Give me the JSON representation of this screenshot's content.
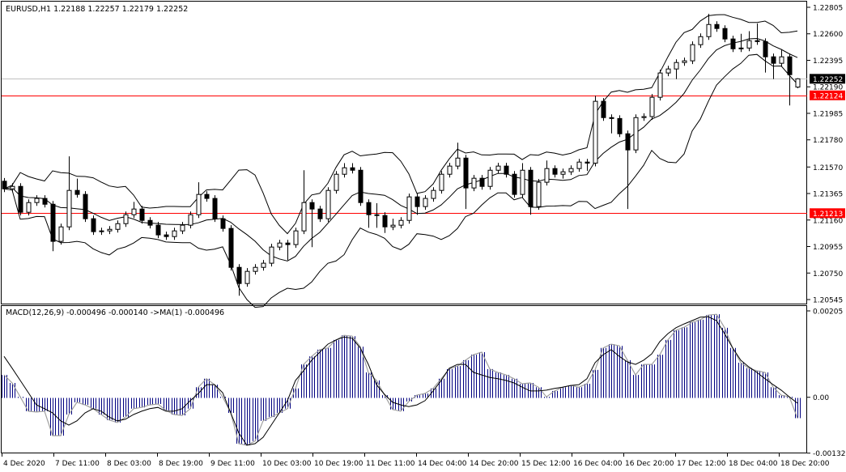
{
  "header": {
    "symbol_info": "EURUSD,H1  1.22188 1.22257 1.22179 1.22252"
  },
  "macd_legend": "MACD(12,26,9) -0.000496 -0.000140  ->MA(1) -0.000496",
  "colors": {
    "bull_body": "#ffffff",
    "bear_body": "#000000",
    "candle_outline": "#000000",
    "bands": "#000000",
    "hline": "#ff0000",
    "bid_line": "#c0c0c0",
    "histogram": "#000080",
    "histogram_outline": "#a0a0a0",
    "signal": "#000000"
  },
  "chart_data": [
    {
      "type": "candlestick",
      "symbol": "EURUSD",
      "timeframe": "H1",
      "ylim": [
        1.20545,
        1.22805
      ],
      "y_ticks": [
        "1.22805",
        "1.22600",
        "1.22395",
        "1.22190",
        "1.21985",
        "1.21780",
        "1.21570",
        "1.21365",
        "1.21160",
        "1.20955",
        "1.20750",
        "1.20545"
      ],
      "x_ticks": [
        "4 Dec 2020",
        "7 Dec 11:00",
        "8 Dec 03:00",
        "8 Dec 19:00",
        "9 Dec 11:00",
        "10 Dec 03:00",
        "10 Dec 19:00",
        "11 Dec 11:00",
        "14 Dec 04:00",
        "14 Dec 20:00",
        "15 Dec 12:00",
        "16 Dec 04:00",
        "16 Dec 20:00",
        "17 Dec 12:00",
        "18 Dec 04:00",
        "18 Dec 20:00"
      ],
      "indicator": "Bollinger Bands",
      "price_labels": [
        {
          "value": "1.22252",
          "kind": "bid",
          "color": "#000000"
        },
        {
          "value": "1.22124",
          "kind": "horizontal-line",
          "color": "#ff0000"
        },
        {
          "value": "1.21213",
          "kind": "horizontal-line",
          "color": "#ff0000"
        }
      ],
      "close": [
        1.21401,
        1.2142,
        1.2122,
        1.21295,
        1.21327,
        1.21282,
        1.20995,
        1.21107,
        1.21389,
        1.21358,
        1.2117,
        1.2107,
        1.21076,
        1.21088,
        1.21132,
        1.21201,
        1.21245,
        1.21157,
        1.2112,
        1.21045,
        1.21032,
        1.21076,
        1.2112,
        1.21201,
        1.21358,
        1.21327,
        1.2117,
        1.21095,
        1.20794,
        1.20669,
        1.20763,
        1.20794,
        1.20826,
        1.20951,
        1.20982,
        1.2097,
        1.21076,
        1.21295,
        1.21245,
        1.2117,
        1.21389,
        1.21514,
        1.21564,
        1.21545,
        1.21295,
        1.21201,
        1.21195,
        1.21107,
        1.2112,
        1.21157,
        1.21339,
        1.21264,
        1.21327,
        1.21389,
        1.21514,
        1.21577,
        1.21639,
        1.21408,
        1.21483,
        1.2142,
        1.21545,
        1.21577,
        1.21514,
        1.21358,
        1.21545,
        1.21264,
        1.21452,
        1.21558,
        1.21514,
        1.21533,
        1.21558,
        1.21608,
        1.216,
        1.22078,
        1.21952,
        1.21945,
        1.21827,
        1.21702,
        1.21952,
        1.2196,
        1.22109,
        1.22297,
        1.22328,
        1.22378,
        1.22391,
        1.22516,
        1.22578,
        1.22672,
        1.22641,
        1.2256,
        1.22484,
        1.2249,
        1.22547,
        1.2254,
        1.22422,
        1.22372,
        1.22422,
        1.22284,
        1.22252
      ],
      "open": [
        1.2146,
        1.21401,
        1.2142,
        1.2122,
        1.21295,
        1.21327,
        1.21282,
        1.20995,
        1.21107,
        1.21389,
        1.21358,
        1.2117,
        1.2107,
        1.21076,
        1.21088,
        1.21132,
        1.21201,
        1.21245,
        1.21157,
        1.2112,
        1.21045,
        1.21032,
        1.21076,
        1.2112,
        1.21201,
        1.21358,
        1.21327,
        1.2117,
        1.21095,
        1.20794,
        1.20669,
        1.20763,
        1.20794,
        1.20826,
        1.20951,
        1.20982,
        1.2097,
        1.21076,
        1.21295,
        1.21245,
        1.2117,
        1.21389,
        1.21514,
        1.21564,
        1.21545,
        1.21295,
        1.21201,
        1.21195,
        1.21107,
        1.2112,
        1.21157,
        1.21339,
        1.21264,
        1.21327,
        1.21389,
        1.21514,
        1.21577,
        1.21639,
        1.21408,
        1.21483,
        1.2142,
        1.21545,
        1.21577,
        1.21514,
        1.21358,
        1.21545,
        1.21264,
        1.21452,
        1.21558,
        1.21514,
        1.21533,
        1.21558,
        1.21608,
        1.216,
        1.22078,
        1.21952,
        1.21945,
        1.21827,
        1.21702,
        1.21952,
        1.2196,
        1.22109,
        1.22297,
        1.22328,
        1.22378,
        1.22391,
        1.22516,
        1.22578,
        1.22672,
        1.22641,
        1.2256,
        1.22484,
        1.2249,
        1.22547,
        1.2254,
        1.22422,
        1.22372,
        1.22422,
        1.22188
      ],
      "high": [
        1.21485,
        1.21445,
        1.21445,
        1.2132,
        1.21352,
        1.21352,
        1.21307,
        1.21132,
        1.21652,
        1.2148,
        1.21383,
        1.21195,
        1.21101,
        1.21113,
        1.21157,
        1.21226,
        1.213,
        1.2127,
        1.21182,
        1.21145,
        1.2107,
        1.21101,
        1.21145,
        1.21226,
        1.21452,
        1.21383,
        1.21352,
        1.21195,
        1.2112,
        1.20819,
        1.20788,
        1.20819,
        1.20851,
        1.20976,
        1.21007,
        1.21007,
        1.21101,
        1.21545,
        1.2132,
        1.2127,
        1.21414,
        1.21539,
        1.216,
        1.216,
        1.2157,
        1.2132,
        1.2129,
        1.2122,
        1.2117,
        1.21182,
        1.21364,
        1.21364,
        1.21352,
        1.21414,
        1.21539,
        1.21602,
        1.21758,
        1.21664,
        1.21508,
        1.21508,
        1.2157,
        1.21602,
        1.21602,
        1.21539,
        1.216,
        1.2157,
        1.21477,
        1.2162,
        1.21583,
        1.21558,
        1.21583,
        1.21633,
        1.21633,
        1.22121,
        1.22103,
        1.21977,
        1.2197,
        1.21852,
        1.21977,
        1.21985,
        1.22134,
        1.22322,
        1.22353,
        1.22403,
        1.22416,
        1.22541,
        1.22603,
        1.22754,
        1.22697,
        1.22666,
        1.22585,
        1.226,
        1.2262,
        1.2268,
        1.22565,
        1.22447,
        1.2248,
        1.22447,
        1.22257
      ],
      "low": [
        1.21376,
        1.21376,
        1.21195,
        1.21195,
        1.2127,
        1.21257,
        1.20919,
        1.2097,
        1.21082,
        1.21333,
        1.21145,
        1.21045,
        1.21045,
        1.21051,
        1.21063,
        1.21107,
        1.21176,
        1.21132,
        1.21095,
        1.2102,
        1.21007,
        1.21007,
        1.21051,
        1.21095,
        1.21176,
        1.21302,
        1.21145,
        1.2107,
        1.20769,
        1.20575,
        1.20644,
        1.20738,
        1.20769,
        1.20801,
        1.20926,
        1.2085,
        1.20945,
        1.21051,
        1.2095,
        1.21145,
        1.21145,
        1.21364,
        1.21489,
        1.2152,
        1.2127,
        1.211,
        1.211,
        1.2106,
        1.21082,
        1.21095,
        1.21132,
        1.212,
        1.21239,
        1.21302,
        1.21364,
        1.21489,
        1.21552,
        1.21245,
        1.21383,
        1.21395,
        1.21395,
        1.2152,
        1.21489,
        1.21333,
        1.21333,
        1.21201,
        1.21239,
        1.21427,
        1.21489,
        1.2148,
        1.21508,
        1.21533,
        1.2154,
        1.21575,
        1.21927,
        1.2183,
        1.21802,
        1.21245,
        1.21677,
        1.21927,
        1.21935,
        1.22084,
        1.22272,
        1.2225,
        1.22353,
        1.22366,
        1.22491,
        1.22553,
        1.22616,
        1.22535,
        1.22459,
        1.22459,
        1.22465,
        1.22515,
        1.223,
        1.2225,
        1.22347,
        1.22046,
        1.22179
      ]
    },
    {
      "type": "bar+line",
      "indicator": "MACD(12,26,9)",
      "ylim": [
        -0.001326,
        0.00205
      ],
      "y_ticks": [
        "0.00205",
        "0.00",
        "-0.001326"
      ],
      "macd": [
        0.00053,
        0.00034,
        1e-05,
        -0.00033,
        -0.00035,
        -0.00033,
        -0.00091,
        -0.00091,
        -0.00041,
        -0.00012,
        -0.00018,
        -0.00027,
        -0.00041,
        -0.00054,
        -0.0006,
        -0.00047,
        -0.00027,
        -0.00024,
        -0.00018,
        -0.00016,
        -0.00031,
        -0.00041,
        -0.00043,
        -0.00027,
        0.00024,
        0.00044,
        0.0003,
        1e-05,
        -0.00037,
        -0.0011,
        -0.00114,
        -0.00104,
        -0.00056,
        -0.00047,
        -0.00037,
        -0.00027,
        0.00021,
        0.00078,
        0.00097,
        0.00113,
        0.00117,
        0.00136,
        0.00147,
        0.00145,
        0.0012,
        0.00059,
        0.0004,
        5e-05,
        -0.00029,
        -0.00033,
        -0.0001,
        5e-05,
        9e-05,
        0.00021,
        0.00044,
        0.00067,
        0.00074,
        0.00088,
        0.00101,
        0.00107,
        0.00067,
        0.00059,
        0.00053,
        0.00044,
        0.00032,
        0.00034,
        0.00024,
        1e-05,
        0.00015,
        0.00024,
        0.00028,
        0.00024,
        0.00032,
        0.00065,
        0.00117,
        0.00126,
        0.00122,
        0.00088,
        0.00053,
        0.00078,
        0.00078,
        0.00101,
        0.00136,
        0.00159,
        0.00166,
        0.00178,
        0.00184,
        0.00195,
        0.00197,
        0.00165,
        0.00117,
        0.00082,
        0.00069,
        0.00063,
        0.00059,
        0.00024,
        5e-05,
        1e-05,
        -0.000496
      ],
      "signal": [
        0.00097,
        0.00069,
        0.0004,
        0.00011,
        -0.00018,
        -0.00027,
        -0.00037,
        -0.00056,
        -0.00066,
        -0.00056,
        -0.00037,
        -0.00027,
        -0.00033,
        -0.00047,
        -0.00056,
        -0.00052,
        -0.00041,
        -0.00033,
        -0.00027,
        -0.00024,
        -0.00033,
        -0.00033,
        -0.00027,
        -8e-05,
        9e-05,
        0.0003,
        0.0003,
        0.00011,
        -0.00037,
        -0.00085,
        -0.00114,
        -0.0011,
        -0.00095,
        -0.00066,
        -0.00037,
        -8e-05,
        0.0004,
        0.00063,
        0.00088,
        0.00107,
        0.00126,
        0.00136,
        0.00143,
        0.0014,
        0.00117,
        0.00078,
        0.0003,
        7e-05,
        -0.00012,
        -0.00018,
        -0.00022,
        -0.00018,
        -8e-05,
        0.00015,
        0.0004,
        0.00069,
        0.00078,
        0.00078,
        0.00059,
        0.00053,
        0.00047,
        0.00044,
        0.0004,
        0.00034,
        0.00024,
        0.00015,
        0.00015,
        0.00017,
        0.00021,
        0.00024,
        0.00028,
        0.0003,
        0.00044,
        0.00082,
        0.00101,
        0.00113,
        0.00097,
        0.00084,
        0.00078,
        0.00088,
        0.00103,
        0.00132,
        0.00151,
        0.00165,
        0.00174,
        0.00182,
        0.0019,
        0.00191,
        0.00182,
        0.00151,
        0.00117,
        0.00088,
        0.00072,
        0.00059,
        0.00044,
        0.0003,
        0.00017,
        1e-05,
        -0.00014
      ]
    }
  ]
}
